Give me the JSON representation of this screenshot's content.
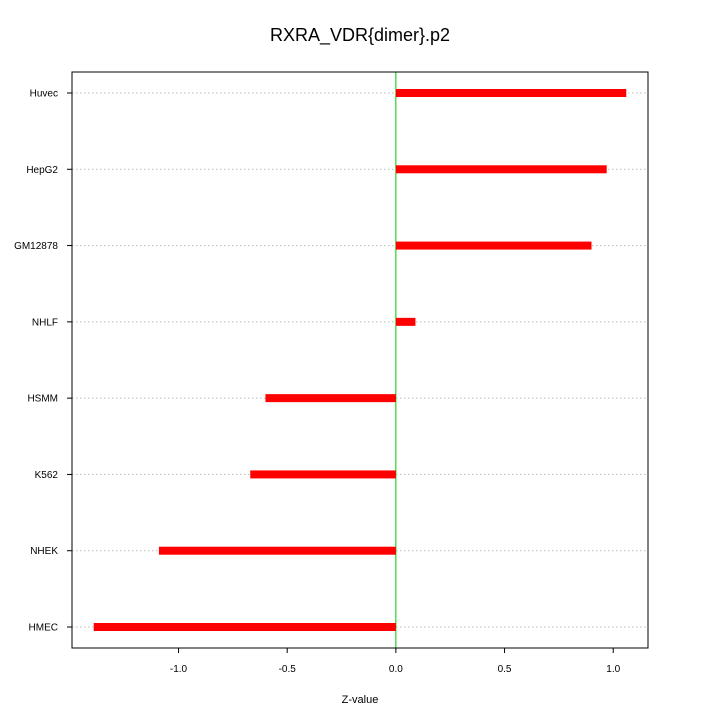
{
  "chart_data": {
    "type": "bar",
    "orientation": "horizontal",
    "title": "RXRA_VDR{dimer}.p2",
    "xlabel": "Z-value",
    "ylabel": "",
    "categories": [
      "Huvec",
      "HepG2",
      "GM12878",
      "NHLF",
      "HSMM",
      "K562",
      "NHEK",
      "HMEC"
    ],
    "values": [
      1.06,
      0.97,
      0.9,
      0.09,
      -0.6,
      -0.67,
      -1.09,
      -1.39
    ],
    "xlim": [
      -1.49,
      1.16
    ],
    "xticks": [
      -1.0,
      -0.5,
      0.0,
      0.5,
      1.0
    ],
    "xtick_labels": [
      "-1.0",
      "-0.5",
      "0.0",
      "0.5",
      "1.0"
    ],
    "grid": "horizontal dotted at each category",
    "reference_line_x": 0,
    "colors": {
      "bar": "#ff0000",
      "reference_line": "#00cc00",
      "grid": "#bbbbbb"
    }
  }
}
